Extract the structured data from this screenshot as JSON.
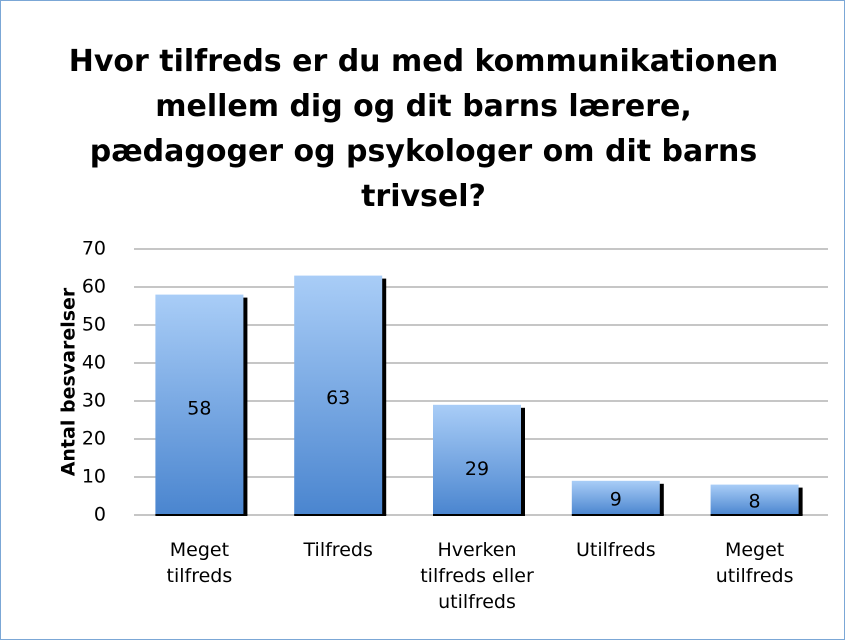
{
  "chart_data": {
    "type": "bar",
    "title": "Hvor tilfreds er du med kommunikationen mellem dig og dit barns lærere, pædagoger og psykologer om dit barns trivsel?",
    "y_label": "Antal besvarelser",
    "categories": [
      "Meget tilfreds",
      "Tilfreds",
      "Hverken tilfreds eller utilfreds",
      "Utilfreds",
      "Meget utilfreds"
    ],
    "values": [
      58,
      63,
      29,
      9,
      8
    ],
    "color": "#4f81bd",
    "ylim": [
      0,
      70
    ],
    "yticks": [
      0,
      10,
      20,
      30,
      40,
      50,
      60,
      70
    ],
    "grid": true
  }
}
